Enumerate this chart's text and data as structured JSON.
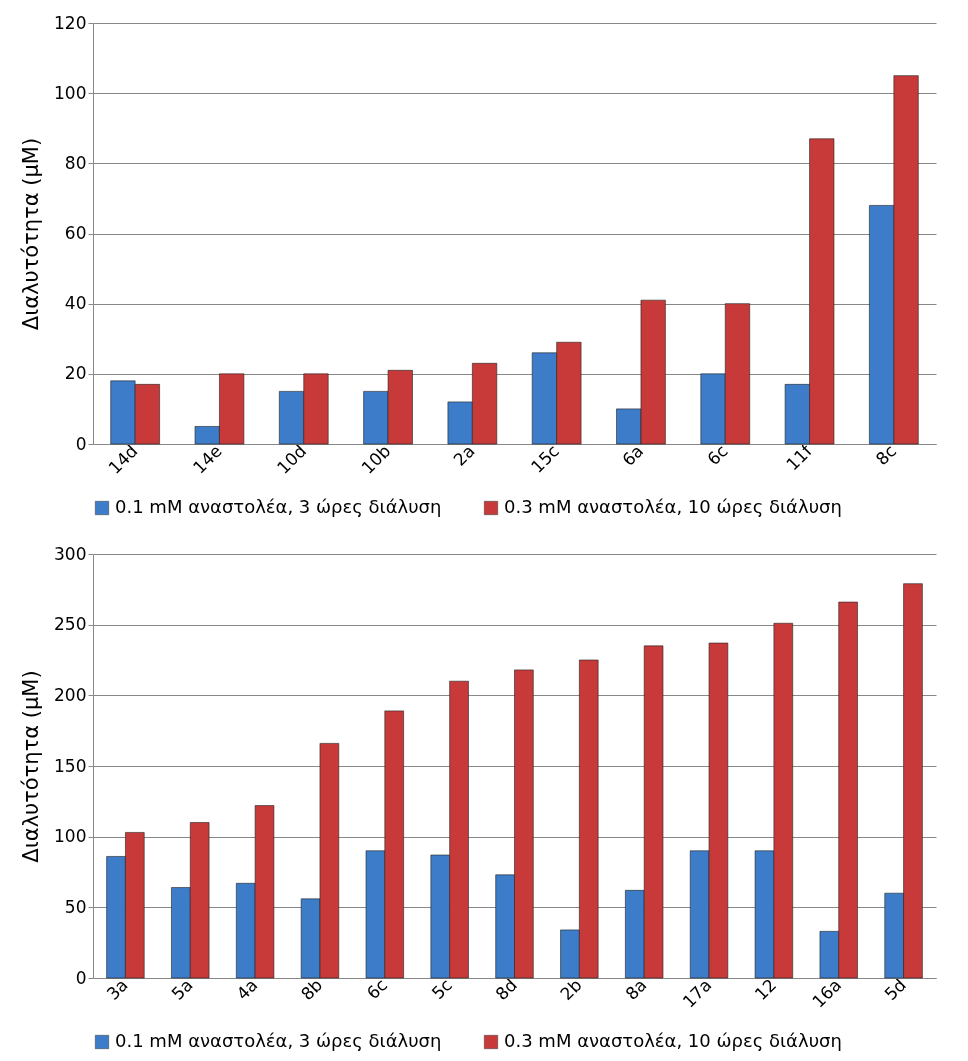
{
  "chart_data": [
    {
      "type": "bar",
      "categories": [
        "14d",
        "14e",
        "10d",
        "10b",
        "2a",
        "15c",
        "6a",
        "6c",
        "11f",
        "8c"
      ],
      "ylabel": "Διαλυτότητα (μM)",
      "ylim": [
        0,
        120
      ],
      "yticks": [
        0,
        20,
        40,
        60,
        80,
        100,
        120
      ],
      "grid": "y",
      "legend": "bottom",
      "series": [
        {
          "name": "0.1 mM αναστολέα, 3 ώρες διάλυση",
          "color": "#3d7cc9",
          "values": [
            18,
            5,
            15,
            15,
            12,
            26,
            10,
            20,
            17,
            68
          ]
        },
        {
          "name": "0.3 mM αναστολέα, 10 ώρες διάλυση",
          "color": "#c83a3a",
          "values": [
            17,
            20,
            20,
            21,
            23,
            29,
            41,
            40,
            87,
            105
          ]
        }
      ]
    },
    {
      "type": "bar",
      "categories": [
        "3a",
        "5a",
        "4a",
        "8b",
        "6c",
        "5c",
        "8d",
        "2b",
        "8a",
        "17a",
        "12",
        "16a",
        "5d"
      ],
      "ylabel": "Διαλυτότητα (μM)",
      "ylim": [
        0,
        300
      ],
      "yticks": [
        0,
        50,
        100,
        150,
        200,
        250,
        300
      ],
      "grid": "y",
      "legend": "bottom",
      "series": [
        {
          "name": "0.1 mM αναστολέα, 3 ώρες διάλυση",
          "color": "#3d7cc9",
          "values": [
            86,
            64,
            67,
            56,
            90,
            87,
            73,
            34,
            62,
            90,
            90,
            33,
            60
          ]
        },
        {
          "name": "0.3 mM αναστολέα, 10 ώρες διάλυση",
          "color": "#c83a3a",
          "values": [
            103,
            110,
            122,
            166,
            189,
            210,
            218,
            225,
            235,
            237,
            251,
            266,
            279
          ]
        }
      ]
    }
  ]
}
